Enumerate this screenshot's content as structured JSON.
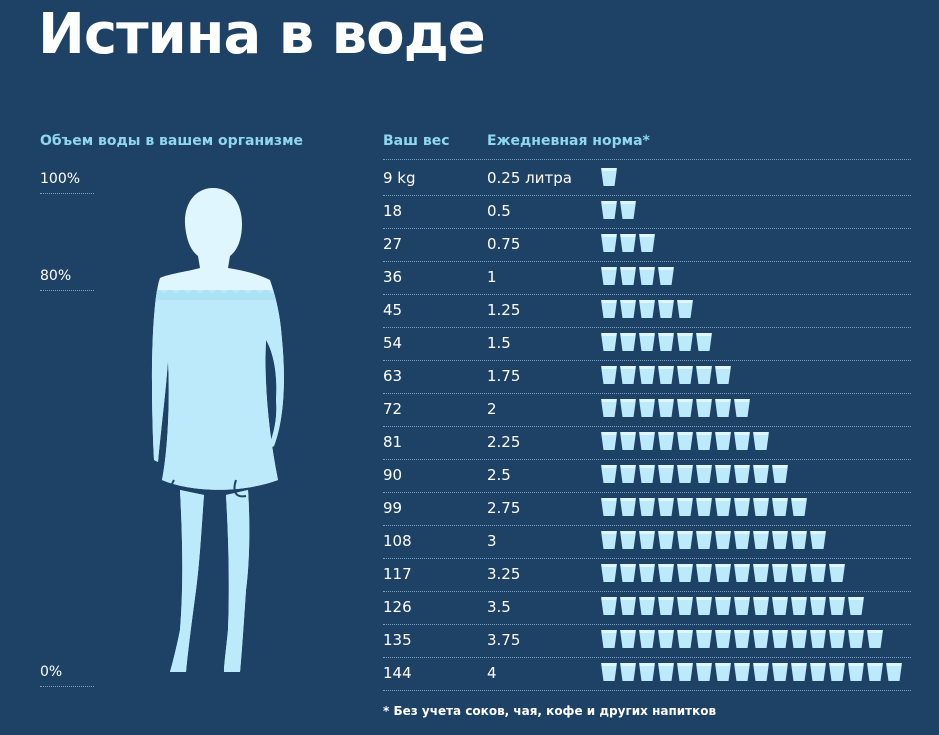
{
  "title": "Истина в воде",
  "body_panel": {
    "header": "Объем воды в вашем организме",
    "fill_level_percent": 80,
    "scale_labels": {
      "top": "100%",
      "mid": "80%",
      "bottom": "0%"
    }
  },
  "colors": {
    "background": "#1e4266",
    "accent": "#8fd6ee",
    "water": "#bdeafa",
    "water_light": "#dff6ff"
  },
  "chart_data": {
    "type": "table",
    "columns": [
      "Ваш вес",
      "Ежедневная норма*"
    ],
    "rows": [
      {
        "weight": "9 kg",
        "norm": "0.25 литра",
        "cups": 1
      },
      {
        "weight": "18",
        "norm": "0.5",
        "cups": 2
      },
      {
        "weight": "27",
        "norm": "0.75",
        "cups": 3
      },
      {
        "weight": "36",
        "norm": "1",
        "cups": 4
      },
      {
        "weight": "45",
        "norm": "1.25",
        "cups": 5
      },
      {
        "weight": "54",
        "norm": "1.5",
        "cups": 6
      },
      {
        "weight": "63",
        "norm": "1.75",
        "cups": 7
      },
      {
        "weight": "72",
        "norm": "2",
        "cups": 8
      },
      {
        "weight": "81",
        "norm": "2.25",
        "cups": 9
      },
      {
        "weight": "90",
        "norm": "2.5",
        "cups": 10
      },
      {
        "weight": "99",
        "norm": "2.75",
        "cups": 11
      },
      {
        "weight": "108",
        "norm": "3",
        "cups": 12
      },
      {
        "weight": "117",
        "norm": "3.25",
        "cups": 13
      },
      {
        "weight": "126",
        "norm": "3.5",
        "cups": 14
      },
      {
        "weight": "135",
        "norm": "3.75",
        "cups": 15
      },
      {
        "weight": "144",
        "norm": "4",
        "cups": 16
      }
    ],
    "footnote": "* Без учета соков, чая, кофе и других напитков"
  }
}
